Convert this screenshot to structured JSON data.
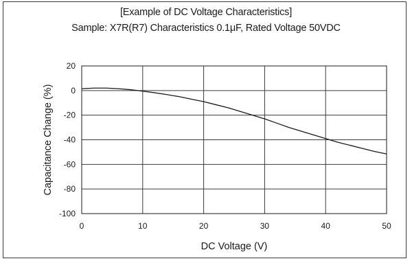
{
  "chart_data": {
    "type": "line",
    "title": "[Example of DC  Voltage Characteristics]",
    "subtitle": "Sample: X7R(R7) Characteristics 0.1μF, Rated Voltage 50VDC",
    "xlabel": "DC Voltage (V)",
    "ylabel": "Capacitance Change (%)",
    "xlim": [
      0,
      50
    ],
    "ylim": [
      -100,
      20
    ],
    "xticks": [
      0,
      10,
      20,
      30,
      40,
      50
    ],
    "yticks": [
      20,
      0,
      -20,
      -40,
      -60,
      -80,
      -100
    ],
    "grid": true,
    "series": [
      {
        "x": [
          0,
          2,
          4,
          6,
          8,
          10,
          12,
          14,
          16,
          18,
          20,
          22,
          24,
          26,
          28,
          30,
          32,
          34,
          36,
          38,
          40,
          42,
          44,
          46,
          48,
          50
        ],
        "y": [
          1.5,
          2,
          2,
          1.5,
          0.7,
          -0.5,
          -1.8,
          -3.3,
          -5,
          -7,
          -9,
          -11.5,
          -14,
          -17,
          -20,
          -23,
          -26.5,
          -30,
          -33,
          -36,
          -39,
          -42,
          -44.5,
          -47,
          -49.5,
          -51.5
        ],
        "color": "#1a1a1a"
      }
    ]
  }
}
